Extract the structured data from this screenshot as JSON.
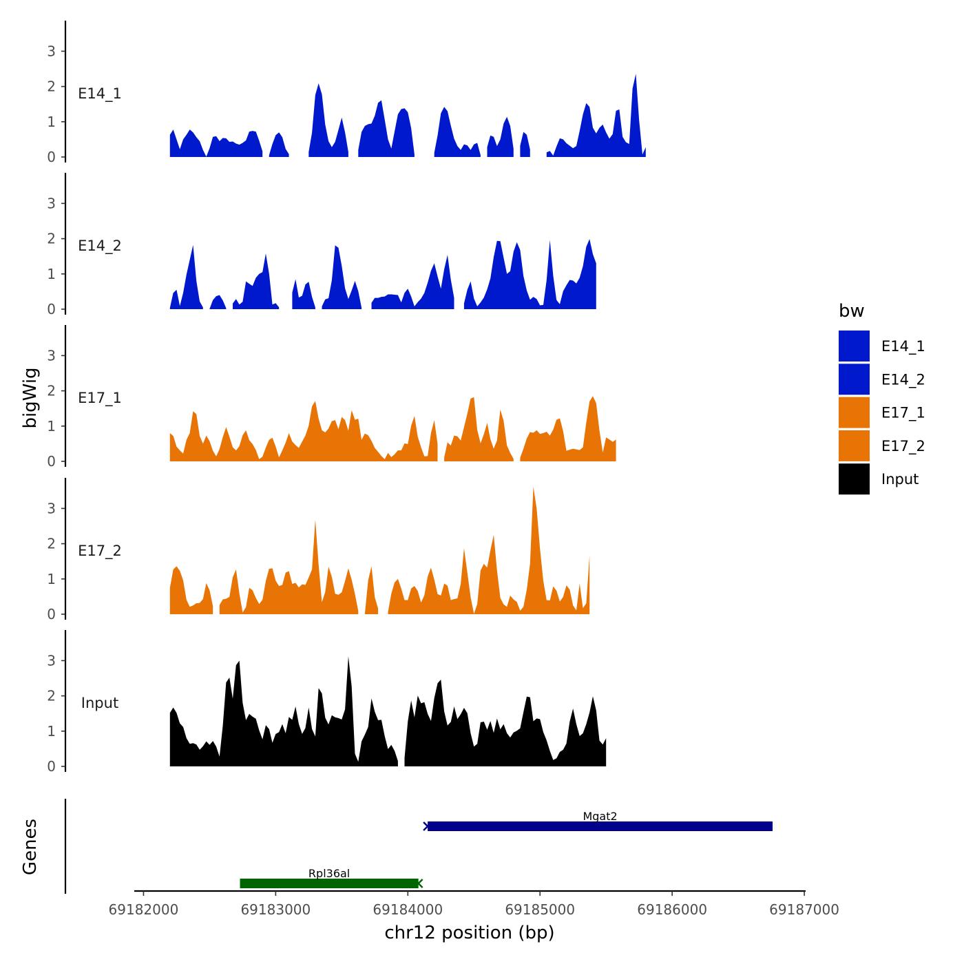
{
  "chart_data": {
    "type": "area",
    "chromosome": "chr12",
    "xlabel": "chr12 position (bp)",
    "ylabel_tracks": "bigWig",
    "ylabel_genes": "Genes",
    "xlim": [
      69181930,
      69187010
    ],
    "xticks": [
      69182000,
      69183000,
      69184000,
      69185000,
      69186000,
      69187000
    ],
    "ylim": [
      0,
      3.8
    ],
    "yticks": [
      0,
      1,
      2,
      3
    ],
    "x_start": 69182200,
    "x_step": 25,
    "legend": {
      "title": "bw",
      "entries": [
        {
          "name": "E14_1",
          "color": "#0019CC"
        },
        {
          "name": "E14_2",
          "color": "#0019CC"
        },
        {
          "name": "E17_1",
          "color": "#E87406"
        },
        {
          "name": "E17_2",
          "color": "#E87406"
        },
        {
          "name": "Input",
          "color": "#000000"
        }
      ]
    },
    "tracks": [
      {
        "name": "E14_1",
        "color": "#0019CC",
        "x_start": 69182200,
        "x_step": 25,
        "values": [
          0.63,
          0.78,
          0.5,
          0.22,
          0.5,
          0.63,
          0.78,
          0.7,
          0.56,
          0.45,
          0.2,
          0.01,
          0.25,
          0.57,
          0.59,
          0.45,
          0.54,
          0.53,
          0.43,
          0.44,
          0.38,
          0.35,
          0.4,
          0.47,
          0.72,
          0.74,
          0.72,
          0.46,
          0.16,
          null,
          0.05,
          0.37,
          0.62,
          0.7,
          0.56,
          0.23,
          0.08,
          null,
          null,
          null,
          null,
          null,
          0.14,
          0.69,
          1.76,
          2.09,
          1.78,
          0.92,
          0.45,
          0.28,
          0.43,
          0.77,
          1.12,
          0.7,
          0.14,
          null,
          null,
          0.2,
          0.71,
          0.88,
          0.93,
          0.95,
          1.17,
          1.54,
          1.61,
          1.06,
          0.5,
          0.24,
          0.73,
          1.21,
          1.36,
          1.38,
          1.27,
          0.82,
          0.07,
          null,
          null,
          null,
          null,
          null,
          0.12,
          0.61,
          1.24,
          1.42,
          1.3,
          0.89,
          0.52,
          0.31,
          0.2,
          0.36,
          0.33,
          0.2,
          0.36,
          0.4,
          0.05,
          null,
          0.28,
          0.61,
          0.57,
          0.31,
          0.5,
          0.95,
          1.14,
          0.88,
          0.23,
          null,
          0.32,
          0.71,
          0.63,
          0.21,
          null,
          null,
          null,
          null,
          0.13,
          0.17,
          0.04,
          0.3,
          0.53,
          0.5,
          0.39,
          0.32,
          0.25,
          0.31,
          0.74,
          1.21,
          1.53,
          1.42,
          0.83,
          0.67,
          0.83,
          0.92,
          0.7,
          0.52,
          0.65,
          1.31,
          1.35,
          0.57,
          0.42,
          0.37,
          1.94,
          2.36,
          1.04,
          0.07,
          0.28
        ]
      },
      {
        "name": "E14_2",
        "color": "#0019CC",
        "x_start": 69182200,
        "x_step": 25,
        "values": [
          0.04,
          0.46,
          0.55,
          0.09,
          0.46,
          0.98,
          1.4,
          1.82,
          0.8,
          0.22,
          0.05,
          null,
          0.01,
          0.26,
          0.37,
          0.4,
          0.25,
          0.03,
          null,
          0.16,
          0.29,
          0.13,
          0.21,
          0.79,
          0.72,
          0.66,
          0.89,
          1.0,
          1.05,
          1.58,
          1.01,
          0.13,
          0.17,
          0.05,
          null,
          null,
          null,
          0.47,
          0.85,
          0.33,
          0.38,
          0.7,
          0.78,
          0.35,
          0.05,
          null,
          0.08,
          0.28,
          0.31,
          0.82,
          1.81,
          1.74,
          1.23,
          0.59,
          0.29,
          0.53,
          0.8,
          0.51,
          0.04,
          null,
          null,
          0.18,
          0.32,
          0.32,
          0.35,
          0.36,
          0.42,
          0.42,
          0.41,
          0.4,
          0.19,
          0.46,
          0.58,
          0.36,
          0.08,
          0.2,
          0.3,
          0.46,
          0.75,
          1.09,
          1.3,
          0.93,
          0.58,
          1.13,
          1.54,
          0.84,
          0.32,
          null,
          null,
          0.16,
          0.55,
          0.79,
          0.3,
          0.08,
          0.19,
          0.33,
          0.56,
          0.87,
          1.48,
          1.94,
          1.93,
          1.46,
          1.0,
          1.08,
          1.63,
          1.9,
          1.68,
          0.94,
          0.53,
          0.27,
          0.35,
          0.29,
          0.11,
          0.12,
          0.82,
          1.96,
          0.95,
          0.26,
          0.14,
          0.51,
          0.68,
          0.83,
          0.81,
          0.73,
          0.89,
          1.22,
          1.77,
          1.99,
          1.56,
          1.3
        ]
      },
      {
        "name": "E17_1",
        "color": "#E87406",
        "x_start": 69182200,
        "x_step": 25,
        "values": [
          0.8,
          0.72,
          0.42,
          0.31,
          0.22,
          0.61,
          0.8,
          1.42,
          1.34,
          0.72,
          0.5,
          0.73,
          0.57,
          0.3,
          0.14,
          0.35,
          0.69,
          0.97,
          0.7,
          0.4,
          0.31,
          0.43,
          0.74,
          0.88,
          0.6,
          0.49,
          0.32,
          0.06,
          0.13,
          0.39,
          0.61,
          0.67,
          0.42,
          0.11,
          0.31,
          0.53,
          0.8,
          0.56,
          0.46,
          0.38,
          0.56,
          0.73,
          1.01,
          1.56,
          1.71,
          1.21,
          0.88,
          0.82,
          0.93,
          1.14,
          1.17,
          0.91,
          1.26,
          1.17,
          0.87,
          1.45,
          1.18,
          1.21,
          0.61,
          0.79,
          0.74,
          0.58,
          0.38,
          0.27,
          0.15,
          0.06,
          0.24,
          0.12,
          0.2,
          0.31,
          0.31,
          0.51,
          0.49,
          1.01,
          1.29,
          0.7,
          0.4,
          0.14,
          0.15,
          0.8,
          1.17,
          0.49,
          null,
          0.11,
          0.54,
          0.45,
          0.73,
          0.71,
          0.59,
          0.97,
          1.35,
          1.78,
          1.82,
          0.89,
          0.51,
          0.77,
          1.09,
          0.63,
          0.36,
          0.59,
          1.47,
          1.15,
          0.45,
          0.24,
          0.07,
          null,
          0.1,
          0.36,
          0.65,
          0.83,
          0.81,
          0.88,
          0.78,
          0.8,
          0.84,
          0.73,
          0.9,
          1.18,
          1.22,
          0.86,
          0.3,
          0.33,
          0.36,
          0.34,
          0.32,
          0.4,
          1.1,
          1.7,
          1.85,
          1.65,
          0.87,
          0.25,
          0.68,
          0.62,
          0.55,
          0.62
        ]
      },
      {
        "name": "E17_2",
        "color": "#E87406",
        "x_start": 69182200,
        "x_step": 25,
        "values": [
          0.75,
          1.27,
          1.36,
          1.23,
          0.96,
          0.41,
          0.21,
          0.25,
          0.31,
          0.32,
          0.43,
          0.88,
          0.68,
          0.23,
          null,
          0.26,
          0.42,
          0.44,
          0.49,
          1.05,
          1.27,
          0.59,
          0.05,
          0.2,
          0.75,
          0.68,
          0.46,
          0.29,
          0.41,
          0.94,
          1.29,
          1.3,
          0.95,
          0.8,
          0.83,
          1.18,
          1.22,
          0.86,
          0.89,
          0.76,
          0.85,
          0.83,
          1.04,
          1.27,
          2.68,
          1.4,
          0.34,
          0.63,
          1.35,
          1.06,
          0.58,
          0.55,
          0.62,
          0.94,
          1.3,
          0.98,
          0.57,
          0.09,
          null,
          0.02,
          0.96,
          1.36,
          0.48,
          0.16,
          null,
          null,
          0.06,
          0.58,
          0.9,
          1.0,
          0.73,
          0.4,
          0.4,
          0.73,
          0.8,
          0.66,
          0.33,
          0.54,
          1.07,
          1.32,
          0.98,
          0.57,
          0.53,
          0.87,
          0.81,
          0.4,
          0.43,
          0.45,
          0.86,
          1.87,
          1.18,
          0.48,
          0.01,
          0.29,
          1.24,
          1.43,
          1.32,
          1.81,
          2.25,
          1.24,
          0.46,
          0.28,
          0.21,
          0.53,
          0.42,
          0.35,
          0.1,
          0.21,
          0.7,
          1.43,
          3.62,
          2.99,
          1.86,
          0.95,
          0.4,
          0.39,
          0.79,
          0.67,
          0.36,
          0.49,
          0.82,
          0.7,
          0.25,
          0.11,
          0.87,
          0.17,
          0.31,
          1.66
        ]
      },
      {
        "name": "Input",
        "color": "#000000",
        "x_start": 69182200,
        "x_step": 25,
        "values": [
          1.52,
          1.67,
          1.52,
          1.22,
          1.12,
          0.8,
          0.64,
          0.66,
          0.62,
          0.47,
          0.57,
          0.71,
          0.61,
          0.72,
          0.56,
          0.28,
          1.16,
          2.38,
          2.52,
          1.92,
          2.87,
          3.0,
          1.8,
          1.31,
          1.49,
          1.41,
          1.35,
          1.02,
          0.77,
          1.17,
          1.06,
          0.67,
          0.92,
          0.97,
          1.2,
          0.94,
          1.4,
          1.32,
          1.7,
          1.2,
          0.92,
          1.09,
          1.67,
          1.06,
          0.85,
          2.22,
          2.07,
          1.38,
          1.19,
          1.45,
          1.39,
          1.37,
          1.33,
          1.62,
          3.12,
          2.27,
          0.36,
          0.13,
          0.71,
          0.9,
          1.12,
          1.93,
          1.55,
          1.31,
          1.32,
          0.86,
          0.49,
          0.61,
          0.44,
          0.15,
          null,
          0.24,
          1.28,
          1.87,
          1.39,
          2.01,
          1.79,
          1.82,
          1.49,
          1.29,
          1.94,
          2.36,
          2.46,
          1.56,
          1.16,
          1.26,
          1.7,
          1.34,
          1.48,
          1.66,
          1.51,
          0.94,
          0.56,
          0.64,
          1.25,
          1.27,
          1.04,
          1.29,
          0.95,
          1.36,
          1.05,
          1.2,
          0.94,
          0.82,
          0.96,
          1.01,
          1.08,
          1.54,
          1.98,
          1.96,
          1.28,
          1.36,
          1.34,
          0.97,
          0.74,
          0.44,
          0.18,
          0.23,
          0.41,
          0.47,
          0.65,
          1.27,
          1.64,
          1.2,
          0.86,
          0.94,
          1.2,
          1.53,
          1.99,
          1.59,
          0.73,
          0.62,
          0.8
        ]
      }
    ],
    "genes": [
      {
        "name": "Rpl36al",
        "start": 69182730,
        "end": 69184080,
        "strand": "-",
        "color": "#006400",
        "row": 2
      },
      {
        "name": "Mgat2",
        "start": 69184150,
        "end": 69186760,
        "strand": "+",
        "color": "#00008B",
        "row": 1
      }
    ]
  }
}
